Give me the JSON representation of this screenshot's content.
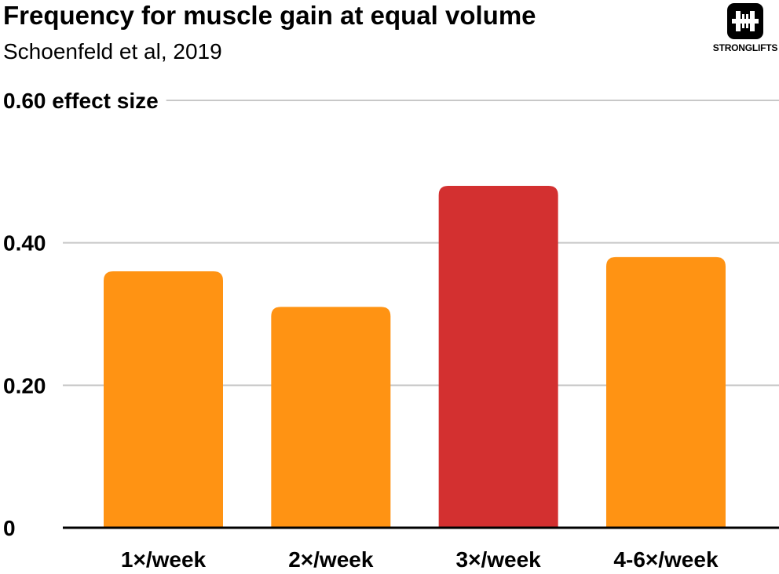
{
  "header": {
    "title": "Frequency for muscle gain at equal volume",
    "subtitle": "Schoenfeld et al, 2019"
  },
  "brand": {
    "logo_text": "STRONGLIFTS",
    "logo_icon": "barbell-logo-icon"
  },
  "colors": {
    "bar_default": "#FF9313",
    "bar_highlight": "#D33030",
    "grid": "#C8C8C8",
    "baseline": "#000000"
  },
  "chart_data": {
    "type": "bar",
    "title": "Frequency for muscle gain at equal volume",
    "subtitle": "Schoenfeld et al, 2019",
    "xlabel": "",
    "ylabel": "effect size",
    "ylim": [
      0,
      0.6
    ],
    "yticks": [
      0,
      0.2,
      0.4,
      0.6
    ],
    "ytick_labels": [
      "0",
      "0.20",
      "0.40",
      "0.60 effect size"
    ],
    "categories": [
      "1×/week",
      "2×/week",
      "3×/week",
      "4-6×/week"
    ],
    "values": [
      0.36,
      0.31,
      0.48,
      0.38
    ],
    "highlight": "3×/week",
    "grid": true,
    "legend": "none"
  }
}
